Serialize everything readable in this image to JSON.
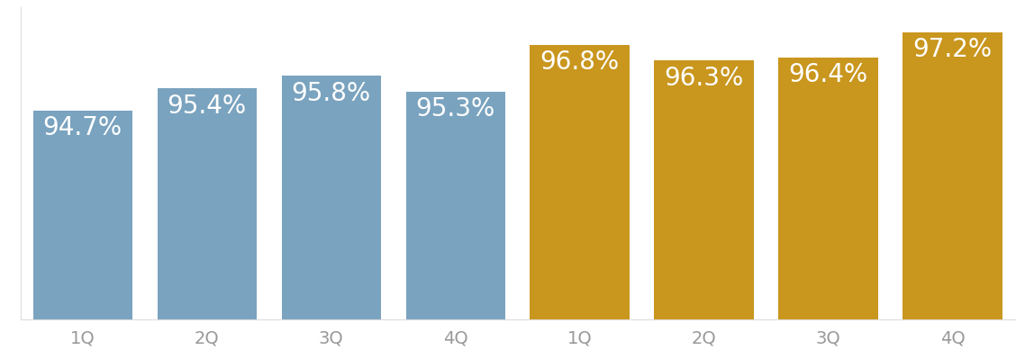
{
  "chart_data": {
    "type": "bar",
    "categories": [
      "1Q",
      "2Q",
      "3Q",
      "4Q",
      "1Q",
      "2Q",
      "3Q",
      "4Q"
    ],
    "values": [
      94.7,
      95.4,
      95.8,
      95.3,
      96.8,
      96.3,
      96.4,
      97.2
    ],
    "value_labels": [
      "94.7%",
      "95.4%",
      "95.8%",
      "95.3%",
      "96.8%",
      "96.3%",
      "96.4%",
      "97.2%"
    ],
    "colors": [
      "#7aa3bf",
      "#7aa3bf",
      "#7aa3bf",
      "#7aa3bf",
      "#c9961e",
      "#c9961e",
      "#c9961e",
      "#c9961e"
    ],
    "ylim": [
      88,
      98
    ],
    "data_labels": true,
    "tick_labels": "x"
  }
}
